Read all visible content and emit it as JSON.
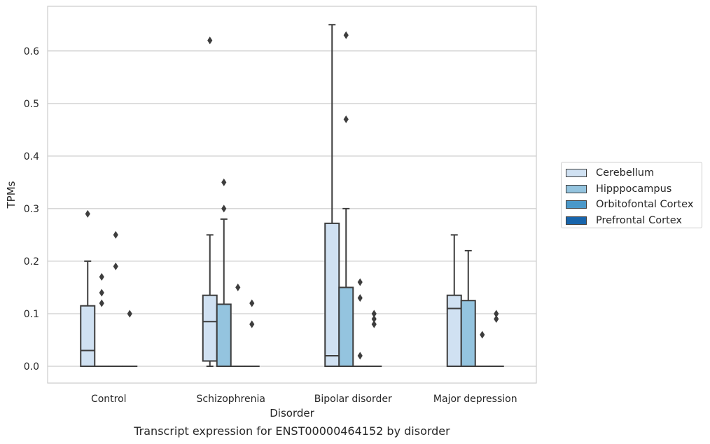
{
  "chart_data": {
    "type": "box",
    "caption": "Transcript expression for ENST00000464152 by disorder",
    "xlabel": "Disorder",
    "ylabel": "TPMs",
    "ylim": [
      -0.032,
      0.685
    ],
    "yticks": [
      "0.0",
      "0.1",
      "0.2",
      "0.3",
      "0.4",
      "0.5",
      "0.6"
    ],
    "categories": [
      "Control",
      "Schizophrenia",
      "Bipolar disorder",
      "Major depression"
    ],
    "grid": "horizontal",
    "legend_position": "right",
    "series": [
      {
        "name": "Cerebellum",
        "color": "#d0e1f2",
        "boxes": [
          {
            "q1": 0.0,
            "median": 0.03,
            "q3": 0.115,
            "whislo": 0.0,
            "whishi": 0.2,
            "fliers": [
              0.29
            ]
          },
          {
            "q1": 0.01,
            "median": 0.085,
            "q3": 0.135,
            "whislo": 0.0,
            "whishi": 0.25,
            "fliers": [
              0.62
            ]
          },
          {
            "q1": 0.0,
            "median": 0.02,
            "q3": 0.272,
            "whislo": 0.0,
            "whishi": 0.65,
            "fliers": []
          },
          {
            "q1": 0.0,
            "median": 0.11,
            "q3": 0.135,
            "whislo": 0.0,
            "whishi": 0.25,
            "fliers": []
          }
        ]
      },
      {
        "name": "Hipppocampus",
        "color": "#94c4df",
        "boxes": [
          {
            "q1": 0.0,
            "median": 0.0,
            "q3": 0.0,
            "whislo": 0.0,
            "whishi": 0.0,
            "fliers": [
              0.17,
              0.14,
              0.12
            ]
          },
          {
            "q1": 0.0,
            "median": 0.0,
            "q3": 0.118,
            "whislo": 0.0,
            "whishi": 0.28,
            "fliers": [
              0.35,
              0.3
            ]
          },
          {
            "q1": 0.0,
            "median": 0.0,
            "q3": 0.15,
            "whislo": 0.0,
            "whishi": 0.3,
            "fliers": [
              0.63,
              0.47
            ]
          },
          {
            "q1": 0.0,
            "median": 0.0,
            "q3": 0.125,
            "whislo": 0.0,
            "whishi": 0.22,
            "fliers": []
          }
        ]
      },
      {
        "name": "Orbitofontal Cortex",
        "color": "#4a98c9",
        "boxes": [
          {
            "q1": 0.0,
            "median": 0.0,
            "q3": 0.0,
            "whislo": 0.0,
            "whishi": 0.0,
            "fliers": [
              0.25,
              0.19
            ]
          },
          {
            "q1": 0.0,
            "median": 0.0,
            "q3": 0.0,
            "whislo": 0.0,
            "whishi": 0.0,
            "fliers": [
              0.15
            ]
          },
          {
            "q1": 0.0,
            "median": 0.0,
            "q3": 0.0,
            "whislo": 0.0,
            "whishi": 0.0,
            "fliers": [
              0.16,
              0.13,
              0.02
            ]
          },
          {
            "q1": 0.0,
            "median": 0.0,
            "q3": 0.0,
            "whislo": 0.0,
            "whishi": 0.0,
            "fliers": [
              0.06
            ]
          }
        ]
      },
      {
        "name": "Prefrontal Cortex",
        "color": "#1764ab",
        "boxes": [
          {
            "q1": 0.0,
            "median": 0.0,
            "q3": 0.0,
            "whislo": 0.0,
            "whishi": 0.0,
            "fliers": [
              0.1
            ]
          },
          {
            "q1": 0.0,
            "median": 0.0,
            "q3": 0.0,
            "whislo": 0.0,
            "whishi": 0.0,
            "fliers": [
              0.12,
              0.08
            ]
          },
          {
            "q1": 0.0,
            "median": 0.0,
            "q3": 0.0,
            "whislo": 0.0,
            "whishi": 0.0,
            "fliers": [
              0.1,
              0.09,
              0.08
            ]
          },
          {
            "q1": 0.0,
            "median": 0.0,
            "q3": 0.0,
            "whislo": 0.0,
            "whishi": 0.0,
            "fliers": [
              0.1,
              0.09
            ]
          }
        ]
      }
    ]
  }
}
